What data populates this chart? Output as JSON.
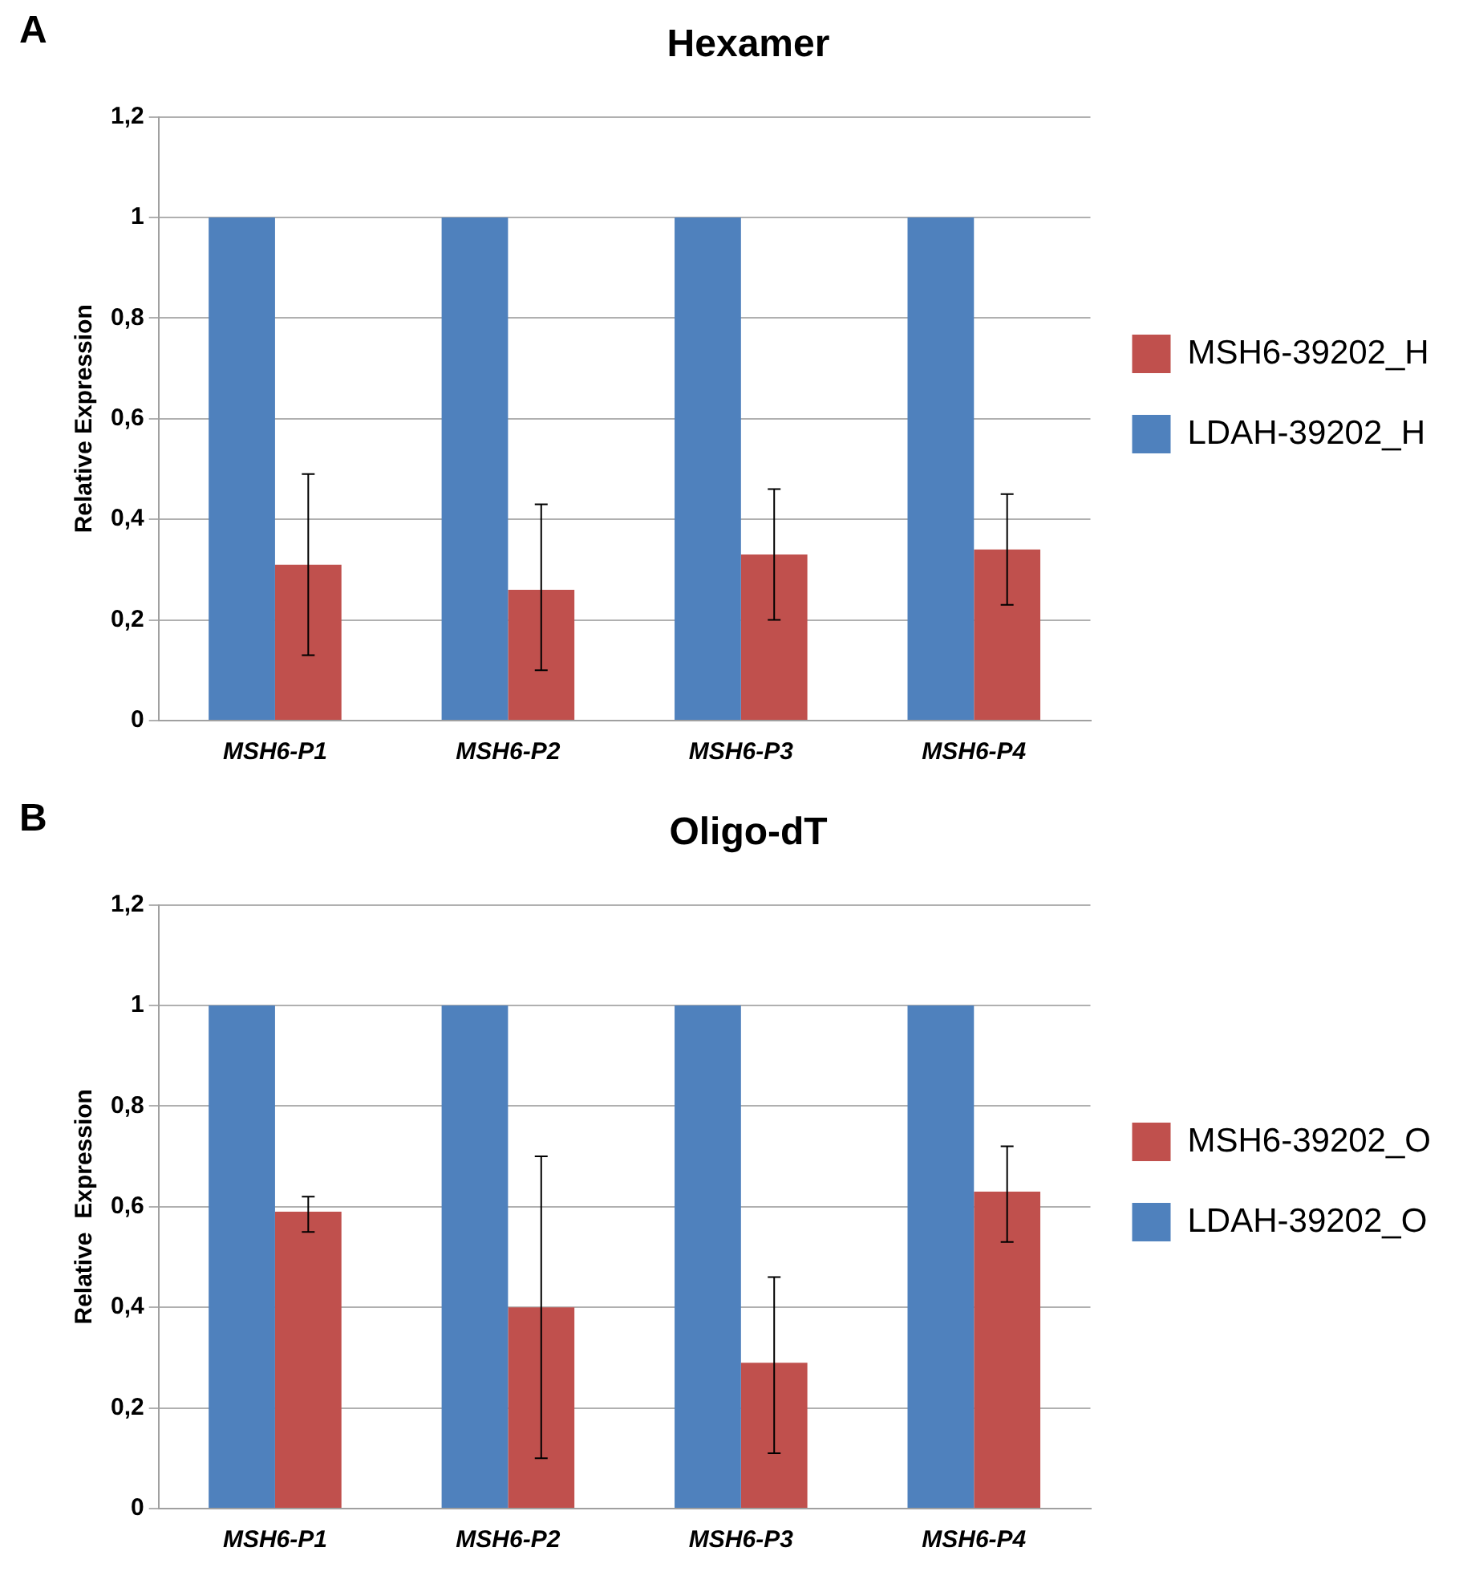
{
  "chart_data": [
    {
      "type": "bar",
      "title": "Hexamer",
      "annotations": [
        "A"
      ],
      "ylabel": "Relative Expression",
      "categories": [
        "MSH6-P1",
        "MSH6-P2",
        "MSH6-P3",
        "MSH6-P4"
      ],
      "series": [
        {
          "name": "LDAH-39202_H",
          "color": "#4f81bd",
          "values": [
            1,
            1,
            1,
            1
          ]
        },
        {
          "name": "MSH6-39202_H",
          "color": "#c0504d",
          "values": [
            0.31,
            0.26,
            0.33,
            0.34
          ],
          "errors": [
            [
              0.13,
              0.49
            ],
            [
              0.1,
              0.43
            ],
            [
              0.2,
              0.46
            ],
            [
              0.23,
              0.45
            ]
          ]
        }
      ],
      "ylim": [
        0,
        1.2
      ],
      "yticks": [
        {
          "value": 0,
          "label": "0"
        },
        {
          "value": 0.2,
          "label": "0,2"
        },
        {
          "value": 0.4,
          "label": "0,4"
        },
        {
          "value": 0.6,
          "label": "0,6"
        },
        {
          "value": 0.8,
          "label": "0,8"
        },
        {
          "value": 1,
          "label": "1"
        },
        {
          "value": 1.2,
          "label": "1,2"
        }
      ],
      "grid": "y",
      "legend": "right"
    },
    {
      "type": "bar",
      "title": "Oligo-dT",
      "annotations": [
        "B"
      ],
      "ylabel": "Relative  Expression",
      "categories": [
        "MSH6-P1",
        "MSH6-P2",
        "MSH6-P3",
        "MSH6-P4"
      ],
      "series": [
        {
          "name": "LDAH-39202_O",
          "color": "#4f81bd",
          "values": [
            1,
            1,
            1,
            1
          ]
        },
        {
          "name": "MSH6-39202_O",
          "color": "#c0504d",
          "values": [
            0.59,
            0.4,
            0.29,
            0.63
          ],
          "errors": [
            [
              0.55,
              0.62
            ],
            [
              0.1,
              0.7
            ],
            [
              0.11,
              0.46
            ],
            [
              0.53,
              0.72
            ]
          ]
        }
      ],
      "ylim": [
        0,
        1.2
      ],
      "yticks": [
        {
          "value": 0,
          "label": "0"
        },
        {
          "value": 0.2,
          "label": "0,2"
        },
        {
          "value": 0.4,
          "label": "0,4"
        },
        {
          "value": 0.6,
          "label": "0,6"
        },
        {
          "value": 0.8,
          "label": "0,8"
        },
        {
          "value": 1,
          "label": "1"
        },
        {
          "value": 1.2,
          "label": "1,2"
        }
      ],
      "grid": "y",
      "legend": "right"
    }
  ]
}
